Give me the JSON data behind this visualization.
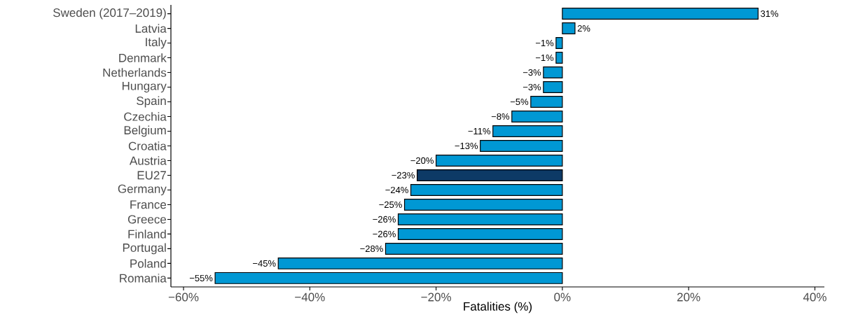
{
  "chart_data": {
    "type": "bar",
    "orientation": "horizontal",
    "xlabel": "Fatalities (%)",
    "categories": [
      "Sweden (2017–2019)",
      "Latvia",
      "Italy",
      "Denmark",
      "Netherlands",
      "Hungary",
      "Spain",
      "Czechia",
      "Belgium",
      "Croatia",
      "Austria",
      "EU27",
      "Germany",
      "France",
      "Greece",
      "Finland",
      "Portugal",
      "Poland",
      "Romania"
    ],
    "values": [
      31,
      2,
      -1,
      -1,
      -3,
      -3,
      -5,
      -8,
      -11,
      -13,
      -20,
      -23,
      -24,
      -25,
      -26,
      -26,
      -28,
      -45,
      -55
    ],
    "value_labels": [
      "31%",
      "2%",
      "−1%",
      "−1%",
      "−3%",
      "−3%",
      "−5%",
      "−8%",
      "−11%",
      "−13%",
      "−20%",
      "−23%",
      "−24%",
      "−25%",
      "−26%",
      "−26%",
      "−28%",
      "−45%",
      "−55%"
    ],
    "colors": [
      "#0098d4",
      "#0098d4",
      "#0098d4",
      "#0098d4",
      "#0098d4",
      "#0098d4",
      "#0098d4",
      "#0098d4",
      "#0098d4",
      "#0098d4",
      "#0098d4",
      "#0d3a66",
      "#0098d4",
      "#0098d4",
      "#0098d4",
      "#0098d4",
      "#0098d4",
      "#0098d4",
      "#0098d4"
    ],
    "xlim": [
      -62,
      41.5
    ],
    "xticks": [
      {
        "value": -60,
        "label": "−60%"
      },
      {
        "value": -40,
        "label": "−40%"
      },
      {
        "value": -20,
        "label": "−20%"
      },
      {
        "value": 0,
        "label": "0%"
      },
      {
        "value": 20,
        "label": "20%"
      },
      {
        "value": 40,
        "label": "40%"
      }
    ]
  }
}
